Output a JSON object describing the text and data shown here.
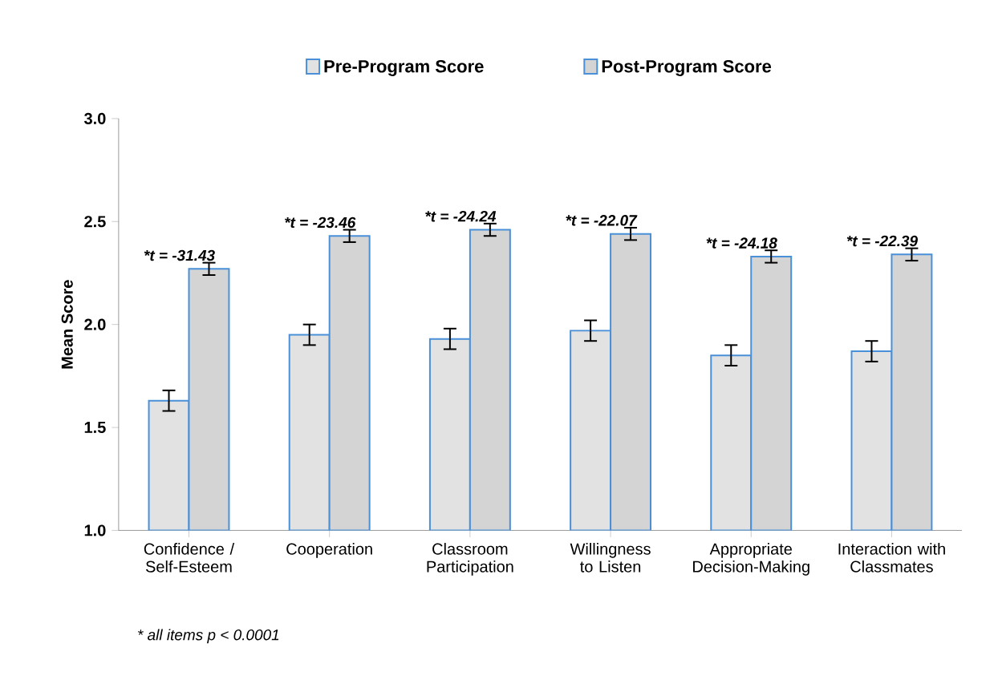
{
  "chart_data": {
    "type": "bar",
    "ylabel": "Mean Score",
    "categories": [
      "Confidence / Self-Esteem",
      "Cooperation",
      "Classroom Participation",
      "Willingness to Listen",
      "Appropriate Decision-Making",
      "Interaction with Classmates"
    ],
    "series": [
      {
        "name": "Pre-Program Score",
        "color": "#e2e2e2",
        "values": [
          1.63,
          1.95,
          1.93,
          1.97,
          1.85,
          1.87
        ],
        "errors": [
          0.05,
          0.05,
          0.05,
          0.05,
          0.05,
          0.05
        ]
      },
      {
        "name": "Post-Program Score",
        "color": "#d4d4d4",
        "values": [
          2.27,
          2.43,
          2.46,
          2.44,
          2.33,
          2.34
        ],
        "errors": [
          0.03,
          0.03,
          0.03,
          0.03,
          0.03,
          0.03
        ]
      }
    ],
    "ylim": [
      1,
      3
    ],
    "yticks": [
      {
        "value": 1,
        "label": "1.0"
      },
      {
        "value": 1.5,
        "label": "1.5"
      },
      {
        "value": 2,
        "label": "2.0"
      },
      {
        "value": 2.5,
        "label": "2.5"
      },
      {
        "value": 3,
        "label": "3.0"
      }
    ],
    "legend": "top",
    "annotations": [
      "*t = -31.43",
      "*t = -23.46",
      "*t = -24.24",
      "*t = -22.07",
      "*t = -24.18",
      "*t = -22.39",
      "* all items p < 0.0001"
    ]
  }
}
